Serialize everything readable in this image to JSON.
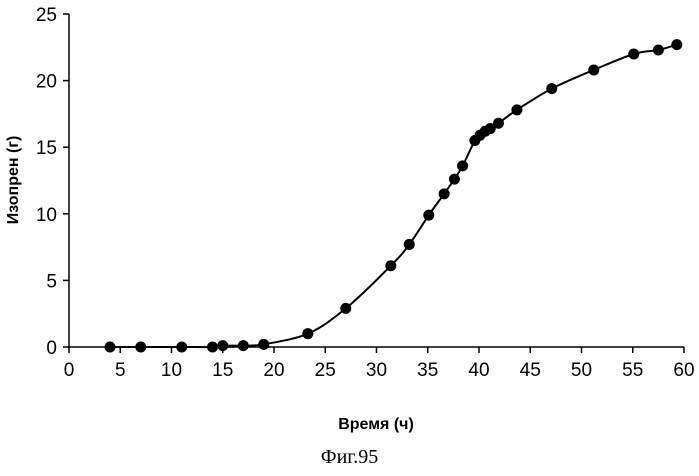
{
  "chart_data": {
    "type": "scatter",
    "xlabel": "Время (ч)",
    "ylabel": "Изопрен (г)",
    "xlim": [
      0,
      60
    ],
    "ylim": [
      0,
      25
    ],
    "x_ticks": [
      0,
      5,
      10,
      15,
      20,
      25,
      30,
      35,
      40,
      45,
      50,
      55,
      60
    ],
    "y_ticks": [
      0,
      5,
      10,
      15,
      20,
      25
    ],
    "grid": false,
    "legend": "none",
    "marker_color": "#000000",
    "line_color": "#000000",
    "series": [
      {
        "x": [
          4,
          7,
          11,
          14,
          15,
          17,
          19,
          23.3,
          27,
          31.4,
          33.2,
          35.1,
          36.6,
          37.6,
          38.4,
          39.6,
          40.1,
          40.6,
          41.1,
          41.9,
          43.7,
          47.1,
          51.2,
          55.1,
          57.5,
          59.3
        ],
        "y": [
          0,
          0,
          0,
          0,
          0.1,
          0.1,
          0.2,
          1.0,
          2.9,
          6.1,
          7.7,
          9.9,
          11.5,
          12.6,
          13.6,
          15.5,
          15.9,
          16.2,
          16.4,
          16.8,
          17.8,
          19.4,
          20.8,
          22.0,
          22.3,
          22.7
        ]
      }
    ]
  },
  "caption": "Фиг.95"
}
